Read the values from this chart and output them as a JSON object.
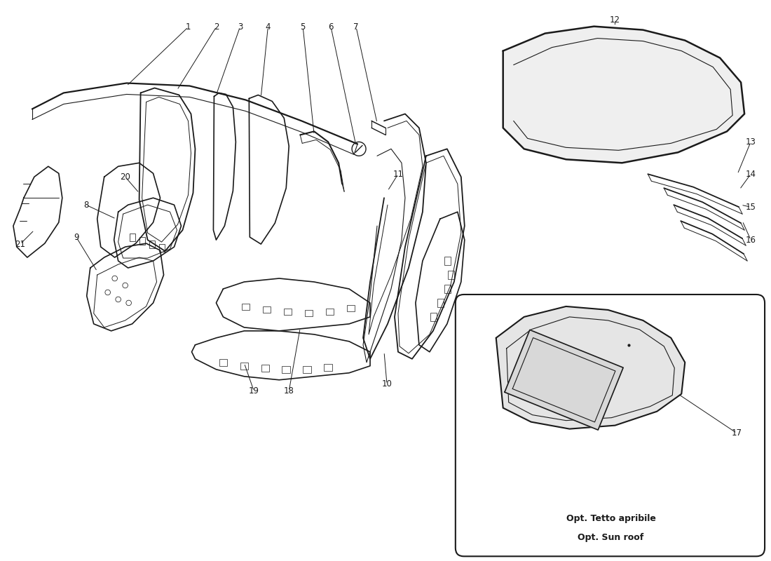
{
  "bg_color": "#ffffff",
  "line_color": "#1a1a1a",
  "text_color": "#1a1a1a",
  "sunroof_label_line1": "Opt. Tetto apribile",
  "sunroof_label_line2": "Opt. Sun roof"
}
